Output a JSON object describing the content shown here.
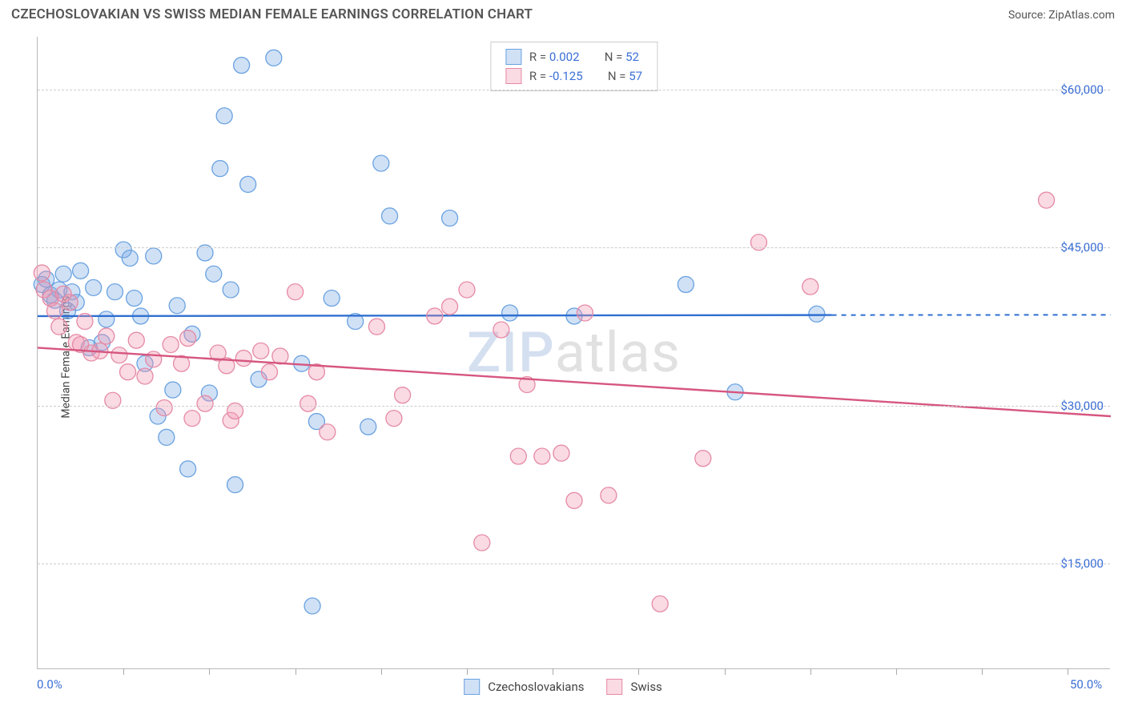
{
  "header": {
    "title": "CZECHOSLOVAKIAN VS SWISS MEDIAN FEMALE EARNINGS CORRELATION CHART",
    "source_label": "Source: ZipAtlas.com"
  },
  "axes": {
    "ylabel": "Median Female Earnings",
    "xmin": 0.0,
    "xmax": 50.0,
    "ymin": 5000,
    "ymax": 65000,
    "x_tick_labels": [
      "0.0%",
      "50.0%"
    ],
    "y_ticks": [
      15000,
      30000,
      45000,
      60000
    ],
    "y_tick_labels": [
      "$15,000",
      "$30,000",
      "$45,000",
      "$60,000"
    ],
    "x_minor_ticks_pct": [
      4,
      8,
      12,
      16,
      20,
      24,
      28,
      32,
      36,
      40,
      44,
      48
    ],
    "grid_color": "#cccccc",
    "axis_color": "#b9b9b9",
    "tick_label_color": "#3b6fd6",
    "label_color": "#444444"
  },
  "watermark": {
    "left": "ZIP",
    "right": "atlas"
  },
  "series": [
    {
      "name": "Czechoslovakians",
      "color_fill": "rgba(120,170,230,0.35)",
      "color_stroke": "#6aa2e0",
      "line_color": "#2f6fd0",
      "marker_radius": 10,
      "R": "0.002",
      "N": "52",
      "trend": {
        "x1": 0.0,
        "y1": 38500,
        "x2": 37.0,
        "y2": 38600,
        "x2_ext": 50.0,
        "y2_ext": 38620
      },
      "points": [
        [
          0.2,
          41500
        ],
        [
          0.4,
          42000
        ],
        [
          0.6,
          40500
        ],
        [
          0.8,
          40000
        ],
        [
          1.0,
          41000
        ],
        [
          1.2,
          42500
        ],
        [
          1.4,
          39000
        ],
        [
          1.6,
          40800
        ],
        [
          1.8,
          39800
        ],
        [
          2.0,
          42800
        ],
        [
          2.4,
          35500
        ],
        [
          2.6,
          41200
        ],
        [
          3.0,
          36000
        ],
        [
          3.2,
          38200
        ],
        [
          3.6,
          40800
        ],
        [
          4.0,
          44800
        ],
        [
          4.3,
          44000
        ],
        [
          4.5,
          40200
        ],
        [
          4.8,
          38500
        ],
        [
          5.0,
          34000
        ],
        [
          5.4,
          44200
        ],
        [
          5.6,
          29000
        ],
        [
          6.0,
          27000
        ],
        [
          6.3,
          31500
        ],
        [
          6.5,
          39500
        ],
        [
          7.0,
          24000
        ],
        [
          7.2,
          36800
        ],
        [
          7.8,
          44500
        ],
        [
          8.0,
          31200
        ],
        [
          8.2,
          42500
        ],
        [
          8.5,
          52500
        ],
        [
          8.7,
          57500
        ],
        [
          9.0,
          41000
        ],
        [
          9.2,
          22500
        ],
        [
          9.5,
          62300
        ],
        [
          9.8,
          51000
        ],
        [
          10.3,
          32500
        ],
        [
          11.0,
          63000
        ],
        [
          12.3,
          34000
        ],
        [
          12.8,
          11000
        ],
        [
          13.0,
          28500
        ],
        [
          13.7,
          40200
        ],
        [
          14.8,
          38000
        ],
        [
          15.4,
          28000
        ],
        [
          16.0,
          53000
        ],
        [
          16.4,
          48000
        ],
        [
          19.2,
          47800
        ],
        [
          22.0,
          38800
        ],
        [
          25.0,
          38500
        ],
        [
          30.2,
          41500
        ],
        [
          32.5,
          31300
        ],
        [
          36.3,
          38700
        ]
      ]
    },
    {
      "name": "Swiss",
      "color_fill": "rgba(240,150,175,0.35)",
      "color_stroke": "#e58aa5",
      "line_color": "#d6567f",
      "marker_radius": 10,
      "R": "-0.125",
      "N": "57",
      "trend": {
        "x1": 0.0,
        "y1": 35500,
        "x2": 50.0,
        "y2": 29000
      },
      "points": [
        [
          0.2,
          42600
        ],
        [
          0.3,
          41000
        ],
        [
          0.6,
          40200
        ],
        [
          0.8,
          39000
        ],
        [
          1.0,
          37500
        ],
        [
          1.2,
          40600
        ],
        [
          1.5,
          39800
        ],
        [
          1.8,
          36000
        ],
        [
          2.0,
          35800
        ],
        [
          2.2,
          38000
        ],
        [
          2.5,
          35000
        ],
        [
          2.9,
          35200
        ],
        [
          3.2,
          36600
        ],
        [
          3.5,
          30500
        ],
        [
          3.8,
          34800
        ],
        [
          4.2,
          33200
        ],
        [
          4.6,
          36200
        ],
        [
          5.0,
          32800
        ],
        [
          5.4,
          34400
        ],
        [
          5.9,
          29800
        ],
        [
          6.2,
          35800
        ],
        [
          6.7,
          34000
        ],
        [
          7.0,
          36400
        ],
        [
          7.2,
          28800
        ],
        [
          7.8,
          30200
        ],
        [
          8.4,
          35000
        ],
        [
          8.8,
          33800
        ],
        [
          9.0,
          28600
        ],
        [
          9.2,
          29500
        ],
        [
          9.6,
          34500
        ],
        [
          10.4,
          35200
        ],
        [
          10.8,
          33200
        ],
        [
          11.3,
          34700
        ],
        [
          12.0,
          40800
        ],
        [
          12.6,
          30200
        ],
        [
          13.0,
          33200
        ],
        [
          13.5,
          27500
        ],
        [
          15.8,
          37500
        ],
        [
          16.6,
          28800
        ],
        [
          17.0,
          31000
        ],
        [
          18.5,
          38500
        ],
        [
          19.2,
          39400
        ],
        [
          20.0,
          41000
        ],
        [
          20.7,
          17000
        ],
        [
          21.6,
          37200
        ],
        [
          22.4,
          25200
        ],
        [
          22.8,
          32000
        ],
        [
          23.5,
          25200
        ],
        [
          24.4,
          25500
        ],
        [
          25.0,
          21000
        ],
        [
          25.5,
          38800
        ],
        [
          26.6,
          21500
        ],
        [
          29.0,
          11200
        ],
        [
          31.0,
          25000
        ],
        [
          33.6,
          45500
        ],
        [
          36.0,
          41300
        ],
        [
          47.0,
          49500
        ]
      ]
    }
  ],
  "legend_top": {
    "border_color": "#cccccc",
    "key_color": "#555555",
    "val_color": "#3b6fd6"
  },
  "legend_bottom": {
    "text_color": "#444444"
  }
}
